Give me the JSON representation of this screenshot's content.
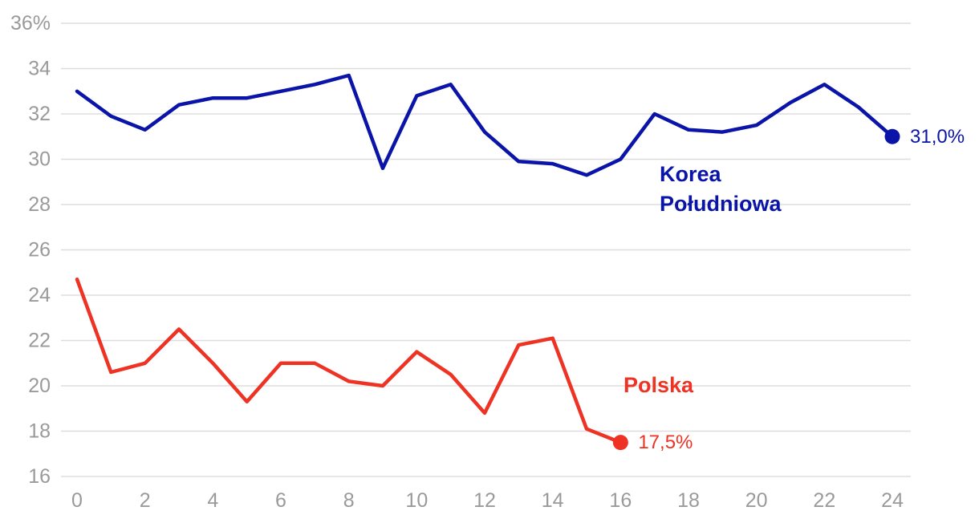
{
  "chart_data": {
    "type": "line",
    "title": "",
    "xlabel": "",
    "ylabel": "",
    "xlim": [
      0,
      24
    ],
    "ylim": [
      16,
      36
    ],
    "x_ticks": [
      "0",
      "2",
      "4",
      "6",
      "8",
      "10",
      "12",
      "14",
      "16",
      "18",
      "20",
      "22",
      "24"
    ],
    "y_ticks": [
      "36%",
      "34",
      "32",
      "30",
      "28",
      "26",
      "24",
      "22",
      "20",
      "18",
      "16"
    ],
    "grid": true,
    "legend": "none",
    "series": [
      {
        "name": "Korea Południowa",
        "name_lines": [
          "Korea",
          "Południowa"
        ],
        "color": "#0b14a8",
        "x": [
          0,
          1,
          2,
          3,
          4,
          5,
          6,
          7,
          8,
          9,
          10,
          11,
          12,
          13,
          14,
          15,
          16,
          17,
          18,
          19,
          20,
          21,
          22,
          23,
          24
        ],
        "values": [
          33.0,
          31.9,
          31.3,
          32.4,
          32.7,
          32.7,
          33.0,
          33.3,
          33.7,
          29.6,
          32.8,
          33.3,
          31.2,
          29.9,
          29.8,
          29.3,
          30.0,
          32.0,
          31.3,
          31.2,
          31.5,
          32.5,
          33.3,
          32.3,
          31.0
        ],
        "end_label": "31,0%"
      },
      {
        "name": "Polska",
        "name_lines": [
          "Polska"
        ],
        "color": "#ee3224",
        "x": [
          0,
          1,
          2,
          3,
          4,
          5,
          6,
          7,
          8,
          9,
          10,
          11,
          12,
          13,
          14,
          15,
          16
        ],
        "values": [
          24.7,
          20.6,
          21.0,
          22.5,
          21.0,
          19.3,
          21.0,
          21.0,
          20.2,
          20.0,
          21.5,
          20.5,
          18.8,
          21.8,
          22.1,
          18.1,
          17.5
        ],
        "end_label": "17,5%"
      }
    ]
  }
}
